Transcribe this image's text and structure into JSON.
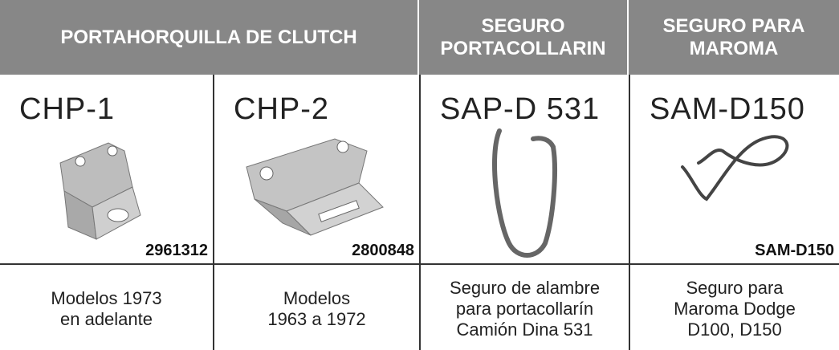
{
  "header": {
    "cells": [
      {
        "lines": [
          "PORTAHORQUILLA DE CLUTCH"
        ]
      },
      {
        "lines": [
          "SEGURO",
          "PORTACOLLARIN"
        ]
      },
      {
        "lines": [
          "SEGURO PARA",
          "MAROMA"
        ]
      }
    ]
  },
  "products": [
    {
      "code": "CHP-1",
      "number": "2961312",
      "description": [
        "Modelos 1973",
        "en adelante"
      ]
    },
    {
      "code": "CHP-2",
      "number": "2800848",
      "description": [
        "Modelos",
        "1963 a 1972"
      ]
    },
    {
      "code": "SAP-D 531",
      "description": [
        "Seguro de alambre",
        "para portacollarín",
        "Camión Dina 531"
      ]
    },
    {
      "code": "SAM-D150",
      "number": "SAM-D150",
      "description": [
        "Seguro para",
        "Maroma Dodge",
        "D100, D150"
      ]
    }
  ]
}
